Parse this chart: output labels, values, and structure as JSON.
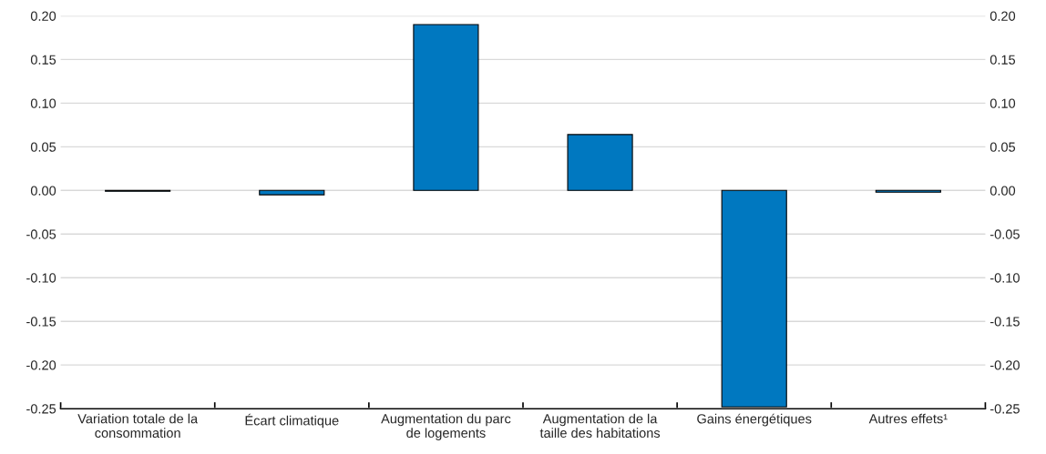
{
  "chart_data": {
    "type": "bar",
    "categories": [
      "Variation totale de la\nconsommation",
      "Écart climatique",
      "Augmentation du parc\nde logements",
      "Augmentation de la\ntaille des habitations",
      "Gains énergétiques",
      "Autres effets¹"
    ],
    "values": [
      -0.001,
      -0.005,
      0.19,
      0.064,
      -0.248,
      -0.002
    ],
    "color": "#0078c0",
    "ylim": [
      -0.25,
      0.2
    ],
    "yticks": [
      {
        "value": -0.25,
        "label": "-0.25"
      },
      {
        "value": -0.2,
        "label": "-0.20"
      },
      {
        "value": -0.15,
        "label": "-0.15"
      },
      {
        "value": -0.1,
        "label": "-0.10"
      },
      {
        "value": -0.05,
        "label": "-0.05"
      },
      {
        "value": 0,
        "label": "0.00"
      },
      {
        "value": 0.05,
        "label": "0.05"
      },
      {
        "value": 0.1,
        "label": "0.10"
      },
      {
        "value": 0.15,
        "label": "0.15"
      },
      {
        "value": 0.2,
        "label": "0.20"
      }
    ],
    "y2lim": [
      -0.25,
      0.2
    ],
    "y2ticks": [
      {
        "value": -0.25,
        "label": "-0.25"
      },
      {
        "value": -0.2,
        "label": "-0.20"
      },
      {
        "value": -0.15,
        "label": "-0.15"
      },
      {
        "value": -0.1,
        "label": "-0.10"
      },
      {
        "value": -0.05,
        "label": "-0.05"
      },
      {
        "value": 0,
        "label": "0.00"
      },
      {
        "value": 0.05,
        "label": "0.05"
      },
      {
        "value": 0.1,
        "label": "0.10"
      },
      {
        "value": 0.15,
        "label": "0.15"
      },
      {
        "value": 0.2,
        "label": "0.20"
      }
    ],
    "grid": "y"
  }
}
